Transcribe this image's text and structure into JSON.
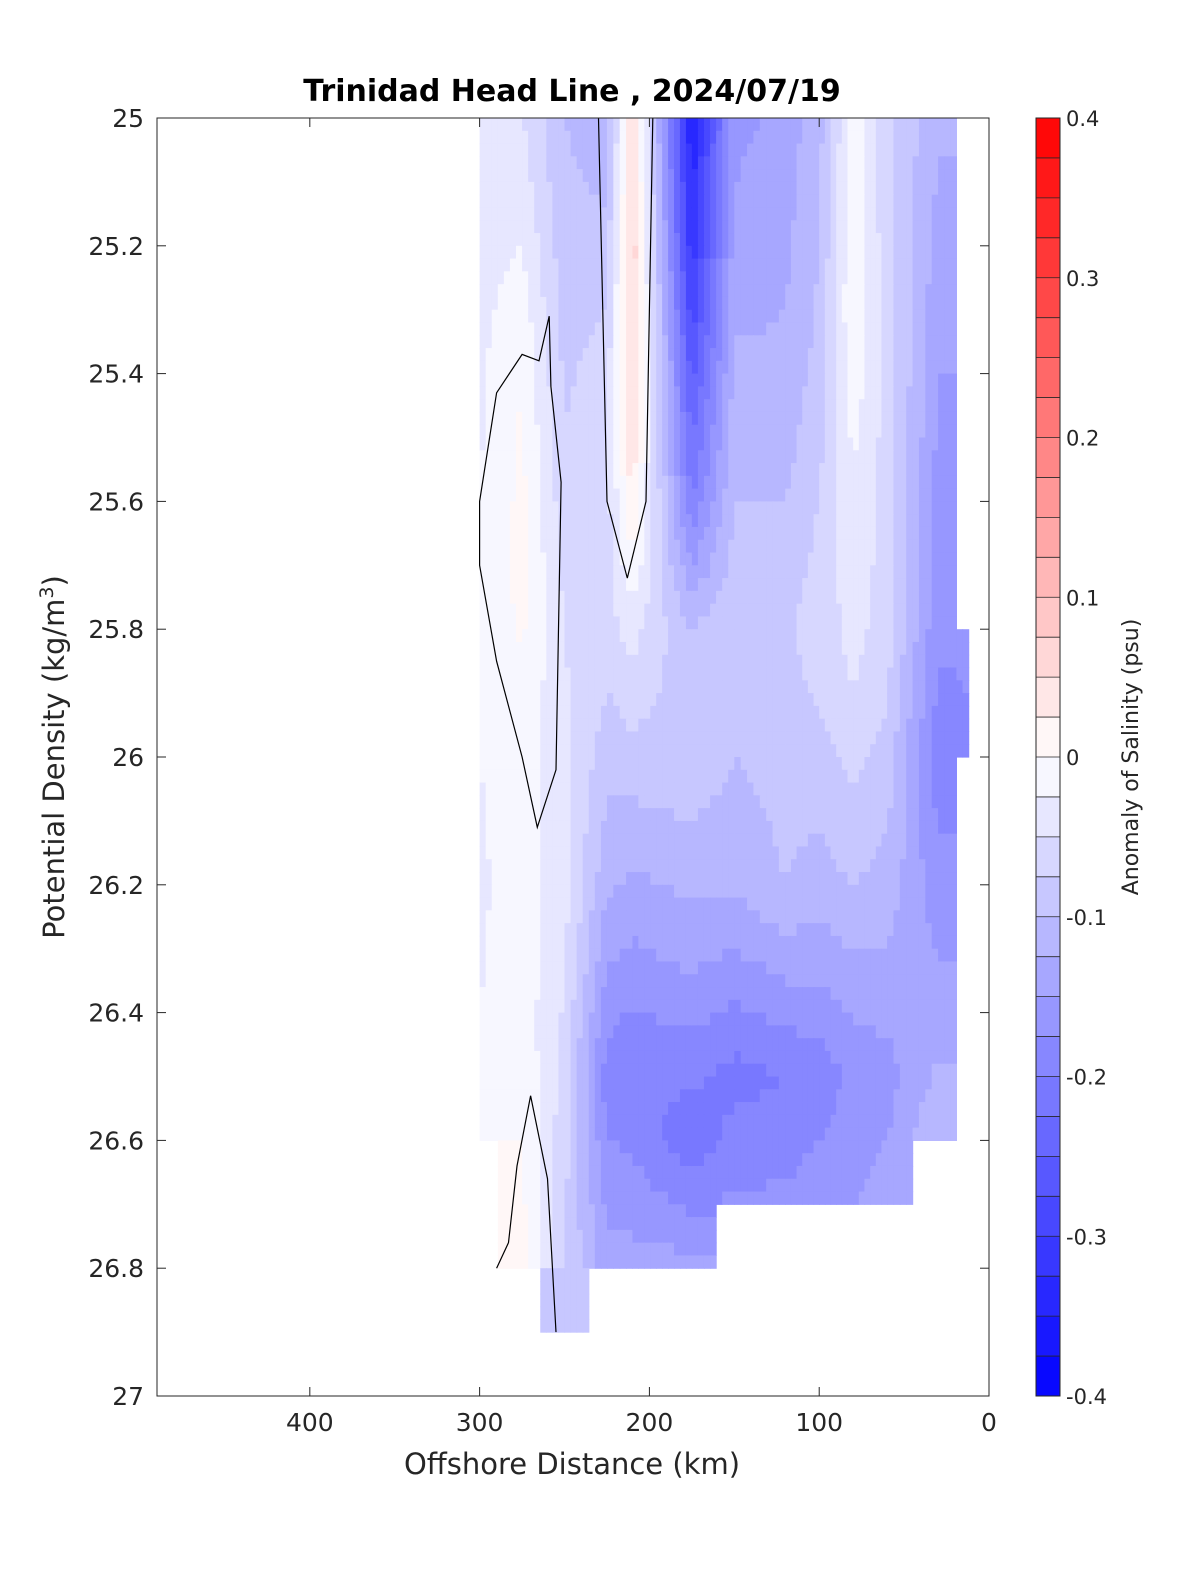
{
  "chart_data": {
    "type": "heatmap",
    "subtype": "filled-contour",
    "title": "Trinidad Head Line , 2024/07/19",
    "xlabel": "Offshore Distance (km)",
    "ylabel_main": "Potential Density (kg/m",
    "ylabel_sup": "3",
    "ylabel_close": ")",
    "colorbar_label": "Anomaly of Salinity (psu)",
    "xlim": [
      490,
      0
    ],
    "ylim": [
      25,
      27
    ],
    "x_reversed": true,
    "y_reversed": true,
    "xticks": [
      400,
      300,
      200,
      100,
      0
    ],
    "xtick_labels": [
      "400",
      "300",
      "200",
      "100",
      "0"
    ],
    "yticks": [
      25,
      25.2,
      25.4,
      25.6,
      25.8,
      26,
      26.2,
      26.4,
      26.6,
      26.8,
      27
    ],
    "ytick_labels": [
      "25",
      "25.2",
      "25.4",
      "25.6",
      "25.8",
      "26",
      "26.2",
      "26.4",
      "26.6",
      "26.8",
      "27"
    ],
    "colorbar_ticks": [
      0.4,
      0.3,
      0.2,
      0.1,
      0,
      -0.1,
      -0.2,
      -0.3,
      -0.4
    ],
    "colorbar_tick_labels": [
      "0.4",
      "0.3",
      "0.2",
      "0.1",
      "0",
      "-0.1",
      "-0.2",
      "-0.3",
      "-0.4"
    ],
    "colorbar_range": [
      -0.4,
      0.4
    ],
    "colorbar_levels": 32,
    "colormap": [
      "#0000ff",
      "#ffffff",
      "#ff0000"
    ],
    "grid": false,
    "data_coverage": {
      "x_range": [
        12,
        300
      ],
      "y_range": [
        25,
        26.9
      ]
    },
    "salinity_anomaly_columns": [
      {
        "x": 300,
        "values": [
          [
            25.0,
            -0.04
          ],
          [
            25.4,
            -0.03
          ],
          [
            25.8,
            -0.02
          ],
          [
            26.2,
            -0.03
          ],
          [
            26.6,
            -0.02
          ]
        ]
      },
      {
        "x": 275,
        "values": [
          [
            25.0,
            -0.05
          ],
          [
            25.4,
            0.0
          ],
          [
            25.7,
            0.01
          ],
          [
            26.0,
            -0.01
          ],
          [
            26.4,
            -0.01
          ],
          [
            26.8,
            0.01
          ]
        ]
      },
      {
        "x": 250,
        "values": [
          [
            25.0,
            -0.1
          ],
          [
            25.4,
            -0.08
          ],
          [
            25.8,
            -0.05
          ],
          [
            26.2,
            -0.04
          ],
          [
            26.5,
            -0.06
          ],
          [
            26.9,
            -0.08
          ]
        ]
      },
      {
        "x": 225,
        "values": [
          [
            25.0,
            -0.12
          ],
          [
            25.4,
            -0.06
          ],
          [
            25.8,
            -0.06
          ],
          [
            26.2,
            -0.12
          ],
          [
            26.5,
            -0.19
          ],
          [
            26.8,
            -0.14
          ]
        ]
      },
      {
        "x": 210,
        "values": [
          [
            25.0,
            0.05
          ],
          [
            25.2,
            0.07
          ],
          [
            25.4,
            0.06
          ],
          [
            25.6,
            0.03
          ],
          [
            25.8,
            -0.04
          ],
          [
            26.2,
            -0.13
          ],
          [
            26.5,
            -0.2
          ],
          [
            26.8,
            -0.14
          ]
        ]
      },
      {
        "x": 175,
        "values": [
          [
            25.0,
            -0.35
          ],
          [
            25.2,
            -0.32
          ],
          [
            25.4,
            -0.26
          ],
          [
            25.6,
            -0.2
          ],
          [
            25.8,
            -0.1
          ],
          [
            26.0,
            -0.08
          ],
          [
            26.3,
            -0.14
          ],
          [
            26.6,
            -0.22
          ],
          [
            26.8,
            -0.14
          ]
        ]
      },
      {
        "x": 150,
        "values": [
          [
            25.0,
            -0.16
          ],
          [
            25.4,
            -0.12
          ],
          [
            25.8,
            -0.08
          ],
          [
            26.2,
            -0.12
          ],
          [
            26.5,
            -0.21
          ],
          [
            26.7,
            -0.17
          ]
        ]
      },
      {
        "x": 120,
        "values": [
          [
            25.0,
            -0.14
          ],
          [
            25.4,
            -0.12
          ],
          [
            25.8,
            -0.08
          ],
          [
            26.2,
            -0.1
          ],
          [
            26.5,
            -0.2
          ],
          [
            26.7,
            -0.17
          ]
        ]
      },
      {
        "x": 100,
        "values": [
          [
            25.0,
            -0.11
          ],
          [
            25.4,
            -0.09
          ],
          [
            25.8,
            -0.06
          ],
          [
            26.2,
            -0.11
          ],
          [
            26.5,
            -0.19
          ],
          [
            26.7,
            -0.16
          ]
        ]
      },
      {
        "x": 80,
        "values": [
          [
            25.0,
            -0.01
          ],
          [
            25.3,
            0.0
          ],
          [
            25.6,
            -0.03
          ],
          [
            25.9,
            -0.05
          ],
          [
            26.2,
            -0.1
          ],
          [
            26.5,
            -0.17
          ],
          [
            26.7,
            -0.15
          ]
        ]
      },
      {
        "x": 60,
        "values": [
          [
            25.0,
            -0.07
          ],
          [
            25.4,
            -0.06
          ],
          [
            25.8,
            -0.06
          ],
          [
            26.2,
            -0.11
          ],
          [
            26.5,
            -0.16
          ],
          [
            26.7,
            -0.14
          ]
        ]
      },
      {
        "x": 30,
        "values": [
          [
            25.0,
            -0.12
          ],
          [
            25.4,
            -0.15
          ],
          [
            25.8,
            -0.17
          ],
          [
            26.0,
            -0.19
          ],
          [
            26.4,
            -0.14
          ],
          [
            26.6,
            -0.1
          ]
        ]
      },
      {
        "x": 12,
        "values": [
          [
            25.8,
            -0.17
          ],
          [
            26.0,
            -0.18
          ]
        ]
      }
    ],
    "zero_contour_lines": [
      {
        "description": "around positive tongue near 210 km",
        "points": [
          [
            230,
            25.0
          ],
          [
            225,
            25.6
          ],
          [
            213,
            25.72
          ],
          [
            202,
            25.6
          ],
          [
            198,
            25.0
          ]
        ]
      },
      {
        "description": "around near-zero pocket near 270 km",
        "points": [
          [
            259,
            25.31
          ],
          [
            265,
            25.38
          ],
          [
            275,
            25.37
          ],
          [
            290,
            25.43
          ],
          [
            300,
            25.6
          ],
          [
            300,
            25.7
          ],
          [
            290,
            25.85
          ],
          [
            275,
            26.0
          ],
          [
            266,
            26.11
          ],
          [
            255,
            26.02
          ],
          [
            252,
            25.57
          ],
          [
            258,
            25.42
          ],
          [
            259,
            25.31
          ]
        ]
      },
      {
        "description": "deep near-zero line near 260 km",
        "points": [
          [
            290,
            26.8
          ],
          [
            283,
            26.76
          ],
          [
            278,
            26.64
          ],
          [
            270,
            26.53
          ],
          [
            260,
            26.66
          ],
          [
            255,
            26.9
          ]
        ]
      }
    ]
  }
}
